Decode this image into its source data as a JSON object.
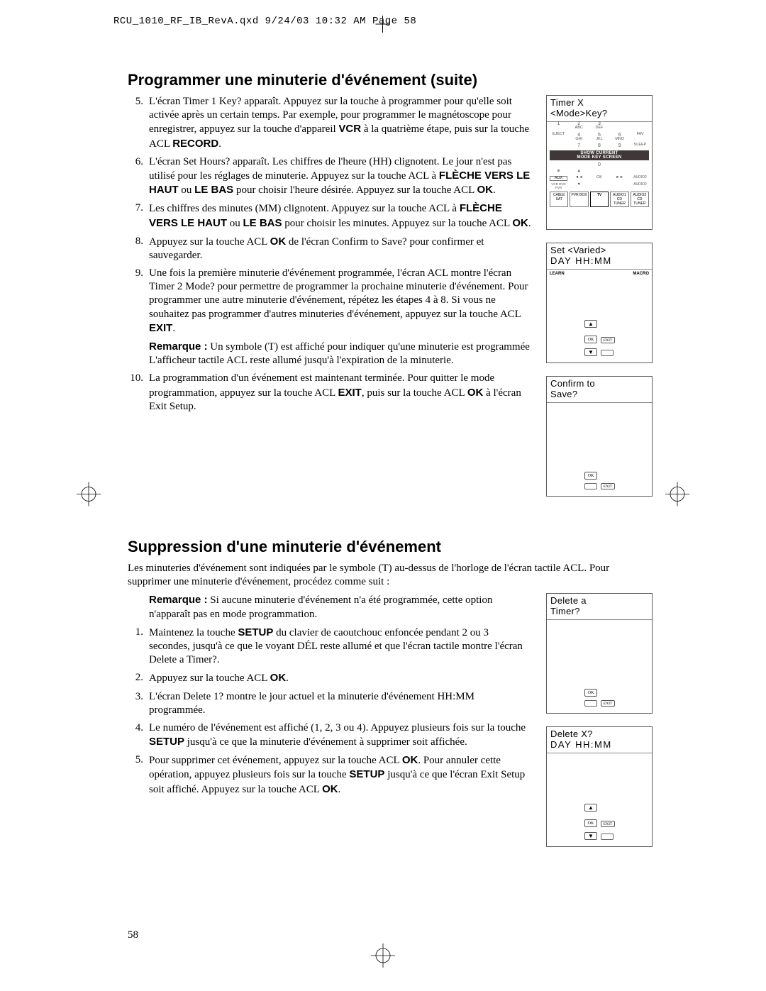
{
  "header": {
    "file_info": "RCU_1010_RF_IB_RevA.qxd  9/24/03  10:32 AM  Page 58"
  },
  "page_number": "58",
  "section1": {
    "title": "Programmer une minuterie d'événement (suite)",
    "steps": [
      {
        "num": "5.",
        "html": "L'écran Timer 1 Key? apparaît. Appuyez sur la touche à programmer pour qu'elle soit activée après un certain temps. Par exemple, pour programmer le magnétoscope pour enregistrer, appuyez sur la touche d'appareil <span class='b'>VCR</span> à la quatrième étape, puis sur la touche ACL <span class='b'>RECORD</span>."
      },
      {
        "num": "6.",
        "html": "L'écran Set Hours? apparaît. Les chiffres de l'heure (HH) clignotent. Le jour n'est pas utilisé pour les réglages de minuterie. Appuyez sur la touche ACL à <span class='b'>FLÈCHE VERS LE HAUT</span> ou <span class='b'>LE BAS</span> pour choisir l'heure désirée. Appuyez sur la touche ACL <span class='b'>OK</span>."
      },
      {
        "num": "7.",
        "html": "Les chiffres des minutes (MM) clignotent. Appuyez sur la touche ACL à <span class='b'>FLÈCHE VERS LE HAUT</span> ou <span class='b'>LE BAS</span> pour choisir les minutes. Appuyez sur la touche ACL <span class='b'>OK</span>."
      },
      {
        "num": "8.",
        "html": "Appuyez sur la touche ACL <span class='b'>OK</span> de l'écran Confirm to Save? pour confirmer et sauvegarder."
      },
      {
        "num": "9.",
        "html": "Une fois la première minuterie d'événement programmée, l'écran ACL montre l'écran Timer 2 Mode? pour permettre de programmer la prochaine minuterie d'événement. Pour programmer une autre minuterie d'événement, répétez les étapes 4 à 8. Si vous ne souhaitez pas programmer d'autres minuteries d'événement, appuyez sur la touche ACL <span class='b'>EXIT</span>."
      }
    ],
    "note": "<span class='b'>Remarque :</span> Un symbole (T) est affiché pour indiquer qu'une minuterie est programmée L'afficheur tactile ACL reste allumé jusqu'à l'expiration de la minuterie.",
    "step10": {
      "num": "10.",
      "html": "La programmation d'un événement est maintenant terminée. Pour quitter le mode programmation, appuyez sur la touche ACL <span class='b'>EXIT</span>, puis sur la touche ACL <span class='b'>OK</span> à l'écran Exit Setup."
    }
  },
  "section2": {
    "title": "Suppression d'une minuterie d'événement",
    "intro": "Les minuteries d'événement sont indiquées par le symbole (T) au-dessus de l'horloge de l'écran tactile ACL. Pour supprimer une minuterie d'événement, procédez comme suit :",
    "note": "<span class='b'>Remarque :</span> Si aucune minuterie d'événement n'a été programmée, cette option n'apparaît pas en mode programmation.",
    "steps": [
      {
        "num": "1.",
        "html": "Maintenez la touche <span class='b'>SETUP</span> du clavier de caoutchouc enfoncée pendant 2 ou 3 secondes, jusqu'à ce que le voyant DÉL reste allumé et que l'écran tactile montre l'écran Delete a Timer?."
      },
      {
        "num": "2.",
        "html": "Appuyez sur la touche ACL <span class='b'>OK</span>."
      },
      {
        "num": "3.",
        "html": "L'écran Delete 1? montre le jour actuel et la minuterie d'événement HH:MM programmée."
      },
      {
        "num": "4.",
        "html": "Le numéro de l'événement est affiché (1, 2, 3 ou 4). Appuyez plusieurs fois sur la touche <span class='b'>SETUP</span> jusqu'à ce que la minuterie d'événement à supprimer soit affichée."
      },
      {
        "num": "5.",
        "html": "Pour supprimer cet événement, appuyez sur la touche ACL <span class='b'>OK</span>. Pour annuler cette opération, appuyez plusieurs fois sur la touche <span class='b'>SETUP</span> jusqu'à ce que l'écran Exit Setup soit affiché. Appuyez sur la touche ACL <span class='b'>OK</span>."
      }
    ]
  },
  "screens": {
    "remote": {
      "line1": "Timer X",
      "line2": "<Mode>Key?"
    },
    "set": {
      "line1": "Set <Varied>",
      "line2": "DAY  HH:MM",
      "learn": "LEARN",
      "macro": "MACRO"
    },
    "confirm": {
      "line1": "Confirm to",
      "line2": "Save?"
    },
    "delete_a": {
      "line1": "Delete a",
      "line2": "Timer?"
    },
    "delete_x": {
      "line1": "Delete X?",
      "line2": "DAY  HH:MM"
    },
    "ok": "OK",
    "exit": "EXIT",
    "mode_bar1": "SHOW CURRENT",
    "mode_bar2": "MODE KEY SCREEN",
    "keypad": [
      [
        "1",
        "2",
        "3"
      ],
      [
        "4",
        "5",
        "6"
      ],
      [
        "7",
        "8",
        "9"
      ],
      [
        "",
        "0",
        ""
      ]
    ],
    "devices": [
      "CABLE SAT",
      "PVR BOX",
      "TV",
      "AUDIO1 CD TUNER",
      "AUDIO2 CD TUNER"
    ],
    "aux": "AUX"
  },
  "colors": {
    "text": "#000000",
    "border": "#5a5a5a",
    "bg": "#ffffff",
    "modebar": "#403838"
  }
}
